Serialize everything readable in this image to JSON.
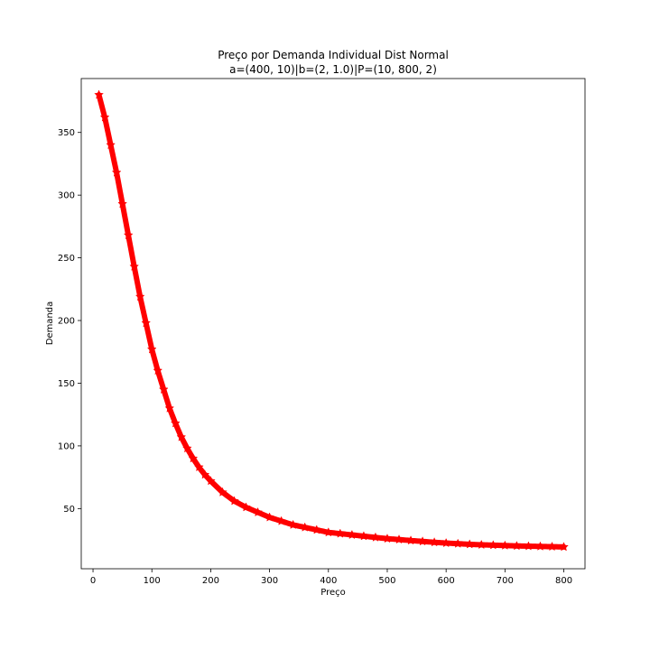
{
  "chart_data": {
    "type": "line",
    "title": "Preço por Demanda Individual Dist Normal",
    "subtitle": "a=(400, 10)|b=(2, 1.0)|P=(10, 800, 2)",
    "xlabel": "Preço",
    "ylabel": "Demanda",
    "xlim": [
      -20,
      836
    ],
    "ylim": [
      2,
      393
    ],
    "xticks": [
      0,
      100,
      200,
      300,
      400,
      500,
      600,
      700,
      800
    ],
    "yticks": [
      50,
      100,
      150,
      200,
      250,
      300,
      350
    ],
    "grid": false,
    "marker": "star",
    "color": "#ff0000",
    "x": [
      10,
      20,
      30,
      40,
      50,
      60,
      70,
      80,
      90,
      100,
      110,
      120,
      130,
      140,
      150,
      160,
      170,
      180,
      190,
      200,
      220,
      240,
      260,
      280,
      300,
      320,
      340,
      360,
      380,
      400,
      420,
      440,
      460,
      480,
      500,
      520,
      540,
      560,
      580,
      600,
      620,
      640,
      660,
      680,
      700,
      720,
      740,
      760,
      780,
      800
    ],
    "y": [
      380,
      362,
      340,
      318,
      293,
      268,
      243,
      219,
      198,
      177,
      160,
      145,
      130,
      118,
      107,
      98,
      90,
      83,
      77,
      72,
      63,
      56,
      51,
      47,
      43,
      40,
      37,
      35,
      33,
      31,
      30,
      29,
      28,
      27,
      26,
      25.3,
      24.5,
      23.8,
      23.1,
      22.5,
      22,
      21.5,
      21.1,
      20.8,
      20.5,
      20.2,
      20,
      19.8,
      19.6,
      19.4
    ]
  }
}
